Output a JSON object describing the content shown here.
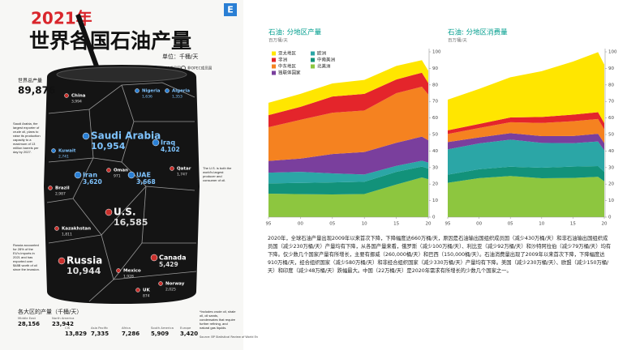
{
  "infographic": {
    "badge": "E",
    "title_year": "2021年",
    "title": "世界各国石油产量",
    "unit": "单位：千桶/天",
    "legend": [
      "OPEC成员国",
      "非OPEC成员国"
    ],
    "world_label": "世界总产量",
    "world_total": "89,876",
    "countries": [
      {
        "name": "China",
        "value": "3,994"
      },
      {
        "name": "Nigeria",
        "value": "1,636"
      },
      {
        "name": "Algeria",
        "value": "1,353"
      },
      {
        "name": "Saudi Arabia",
        "value": "10,954"
      },
      {
        "name": "Iraq",
        "value": "4,102"
      },
      {
        "name": "Kuwait",
        "value": "2,741"
      },
      {
        "name": "Iran",
        "value": "3,620"
      },
      {
        "name": "Oman",
        "value": "971"
      },
      {
        "name": "UAE",
        "value": "3,668"
      },
      {
        "name": "Qatar",
        "value": "1,747"
      },
      {
        "name": "Brazil",
        "value": "2,987"
      },
      {
        "name": "Kazakhstan",
        "value": "1,811"
      },
      {
        "name": "U.S.",
        "value": "16,585"
      },
      {
        "name": "Russia",
        "value": "10,944"
      },
      {
        "name": "Canada",
        "value": "5,429"
      },
      {
        "name": "Mexico",
        "value": "1,928"
      },
      {
        "name": "Norway",
        "value": "2,025"
      },
      {
        "name": "UK",
        "value": "874"
      }
    ],
    "notes": [
      "Saudi Arabia, the largest exporter of crude oil, plans to raise its production capacity to a maximum of 13 million barrels per day by 2027.",
      "The U.S. is both the world's largest producer and consumer of oil.",
      "Russia accounted for 28% of the EU's imports in 2021 and has exported over $48B worth of oil since the invasion."
    ],
    "regions_title": "各大区的产量（千桶/天）",
    "regions": [
      {
        "name": "Middle East",
        "value": "28,156"
      },
      {
        "name": "North America",
        "value": "23,942"
      },
      {
        "name": "CIS",
        "value": "13,829"
      },
      {
        "name": "Asia Pacific",
        "value": "7,335"
      },
      {
        "name": "Africa",
        "value": "7,286"
      },
      {
        "name": "South America",
        "value": "5,909"
      },
      {
        "name": "Europe",
        "value": "3,420"
      }
    ],
    "footnote": "*Includes crude oil, shale oil, oil sands, condensates that require further refining, and natural gas liquids.",
    "source": "Source: BP Statistical Review of World Energy 2022"
  },
  "chart_data": [
    {
      "type": "stacked-area",
      "title": "石油: 分地区产量",
      "subtitle": "百万桶/天",
      "x": [
        1995,
        2000,
        2005,
        2010,
        2015,
        2019,
        2020
      ],
      "xlim": [
        1995,
        2020
      ],
      "xticks": [
        {
          "value": 1995,
          "label": "95"
        },
        {
          "value": 2000,
          "label": "00"
        },
        {
          "value": 2005,
          "label": "05"
        },
        {
          "value": 2010,
          "label": "10"
        },
        {
          "value": 2015,
          "label": "15"
        },
        {
          "value": 2020,
          "label": "20"
        }
      ],
      "ylim": [
        0,
        100
      ],
      "yticks": [
        0,
        10,
        20,
        30,
        40,
        50,
        60,
        70,
        80,
        90,
        100
      ],
      "grid": false,
      "legend": "top-left",
      "series": [
        {
          "name": "北美洲",
          "color": "#8dc63f",
          "values": [
            14.2,
            13.9,
            13.7,
            14.0,
            19.7,
            24.0,
            23.0
          ]
        },
        {
          "name": "中南美洲",
          "color": "#12927a",
          "values": [
            6.2,
            6.8,
            7.3,
            7.4,
            7.7,
            6.6,
            6.4
          ]
        },
        {
          "name": "欧洲",
          "color": "#2ba6a6",
          "values": [
            6.5,
            6.7,
            5.5,
            4.4,
            3.6,
            3.5,
            3.6
          ]
        },
        {
          "name": "独联体国家",
          "color": "#7a3f9d",
          "values": [
            7.1,
            8.0,
            11.7,
            13.6,
            14.0,
            14.6,
            13.5
          ]
        },
        {
          "name": "中东地区",
          "color": "#f58220",
          "values": [
            20.4,
            23.5,
            25.0,
            25.1,
            30.0,
            30.2,
            27.7
          ]
        },
        {
          "name": "非洲",
          "color": "#e4252b",
          "values": [
            7.3,
            7.8,
            9.8,
            10.1,
            8.3,
            8.5,
            7.0
          ]
        },
        {
          "name": "亚太地区",
          "color": "#ffe600",
          "values": [
            7.5,
            7.9,
            7.9,
            8.4,
            8.2,
            7.6,
            7.4
          ]
        }
      ]
    },
    {
      "type": "stacked-area",
      "title": "石油: 分地区消费量",
      "subtitle": "百万桶/天",
      "x": [
        1995,
        2000,
        2005,
        2010,
        2015,
        2019,
        2020
      ],
      "xlim": [
        1995,
        2020
      ],
      "xticks": [
        {
          "value": 1995,
          "label": "95"
        },
        {
          "value": 2000,
          "label": "00"
        },
        {
          "value": 2005,
          "label": "05"
        },
        {
          "value": 2010,
          "label": "10"
        },
        {
          "value": 2015,
          "label": "15"
        },
        {
          "value": 2020,
          "label": "20"
        }
      ],
      "ylim": [
        0,
        100
      ],
      "yticks": [
        0,
        10,
        20,
        30,
        40,
        50,
        60,
        70,
        80,
        90,
        100
      ],
      "grid": false,
      "series": [
        {
          "color": "#8dc63f",
          "values": [
            20.8,
            23.6,
            24.9,
            23.5,
            23.7,
            24.4,
            21.7
          ]
        },
        {
          "color": "#12927a",
          "values": [
            4.9,
            5.4,
            5.6,
            6.4,
            6.9,
            6.5,
            5.7
          ]
        },
        {
          "color": "#2ba6a6",
          "values": [
            15.3,
            15.6,
            16.4,
            15.0,
            14.1,
            14.9,
            13.0
          ]
        },
        {
          "color": "#7a3f9d",
          "values": [
            4.4,
            3.6,
            3.9,
            4.1,
            4.4,
            4.6,
            4.4
          ]
        },
        {
          "color": "#f58220",
          "values": [
            4.9,
            5.7,
            6.6,
            8.0,
            8.9,
            9.0,
            8.3
          ]
        },
        {
          "color": "#e4252b",
          "values": [
            2.2,
            2.5,
            2.9,
            3.6,
            4.0,
            4.1,
            3.8
          ]
        },
        {
          "color": "#ffe600",
          "values": [
            18.6,
            21.2,
            24.3,
            27.7,
            32.1,
            36.3,
            35.4
          ]
        }
      ]
    }
  ],
  "caption": "2020年，全球石油产量出现2009年以来首次下降，下降幅度达660万桶/天，原因是石油输出国组织成员国（减少430万桶/天）和非石油输出国组织成员国（减少230万桶/天）产量均有下降，从各国产量来看，俄罗斯（减少100万桶/天）、利比亚（减少92万桶/天）和沙特阿拉伯（减少79万桶/天）均有下降。仅少数几个国家产量有所增长，主要有挪威（260,000桶/天）和巴西（150,000桶/天）。石油消费量出现了2009年以来首次下降，下降幅度达910万桶/天，经合组织国家（减少580万桶/天）和非经合组织国家（减少330万桶/天）产量均有下降。美国（减少230万桶/天）、欧盟（减少150万桶/天）和印度（减少48万桶/天）跌幅最大。中国（22万桶/天）是2020年需求有所增长的少数几个国家之一。"
}
